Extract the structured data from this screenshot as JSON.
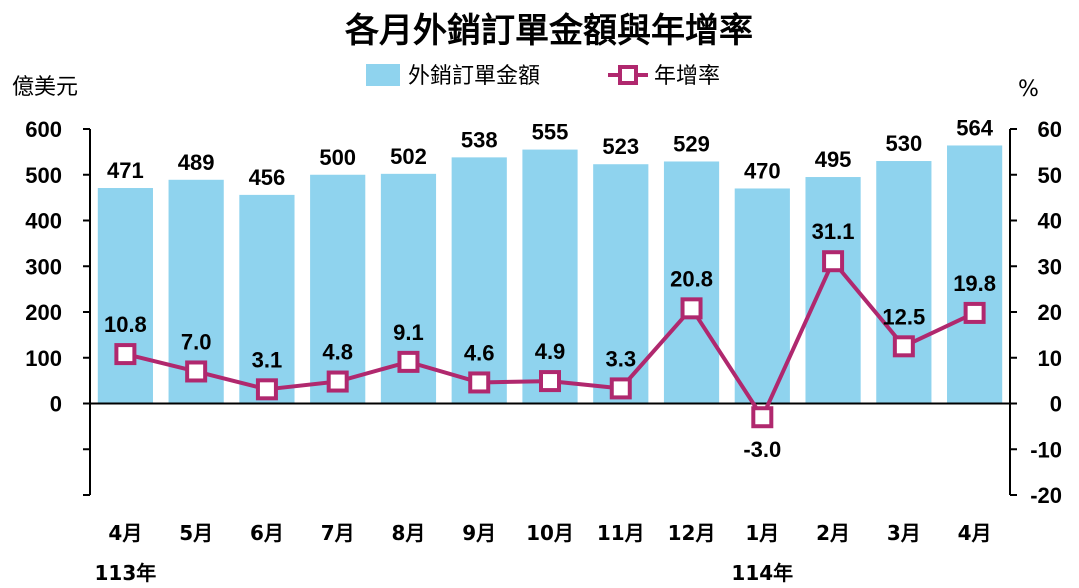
{
  "chart_data": {
    "type": "bar+line",
    "title": "各月外銷訂單金額與年增率",
    "left_unit": "億美元",
    "right_unit": "%",
    "categories": [
      "4月",
      "5月",
      "6月",
      "7月",
      "8月",
      "9月",
      "10月",
      "11月",
      "12月",
      "1月",
      "2月",
      "3月",
      "4月"
    ],
    "year_labels": [
      {
        "label": "113年",
        "category_index": 0
      },
      {
        "label": "114年",
        "category_index": 9
      }
    ],
    "series": [
      {
        "name": "外銷訂單金額",
        "type": "bar",
        "axis": "left",
        "color": "#8fd3ee",
        "values": [
          471,
          489,
          456,
          500,
          502,
          538,
          555,
          523,
          529,
          470,
          495,
          530,
          564
        ],
        "labels": [
          "471",
          "489",
          "456",
          "500",
          "502",
          "538",
          "555",
          "523",
          "529",
          "470",
          "495",
          "530",
          "564"
        ]
      },
      {
        "name": "年增率",
        "type": "line",
        "axis": "right",
        "color": "#b0286e",
        "values": [
          10.8,
          7.0,
          3.1,
          4.8,
          9.1,
          4.6,
          4.9,
          3.3,
          20.8,
          -3.0,
          31.1,
          12.5,
          19.8
        ],
        "labels": [
          "10.8",
          "7.0",
          "3.1",
          "4.8",
          "9.1",
          "4.6",
          "4.9",
          "3.3",
          "20.8",
          "-3.0",
          "31.1",
          "12.5",
          "19.8"
        ]
      }
    ],
    "left_axis": {
      "min": -200,
      "max": 600,
      "ticks": [
        0,
        100,
        200,
        300,
        400,
        500,
        600
      ],
      "tick_labels": [
        "0",
        "100",
        "200",
        "300",
        "400",
        "500",
        "600"
      ]
    },
    "right_axis": {
      "min": -20,
      "max": 60,
      "ticks": [
        -20,
        -10,
        0,
        10,
        20,
        30,
        40,
        50,
        60
      ],
      "tick_labels": [
        "-20",
        "-10",
        "0",
        "10",
        "20",
        "30",
        "40",
        "50",
        "60"
      ]
    },
    "legend_position": "top-center",
    "grid": false
  }
}
